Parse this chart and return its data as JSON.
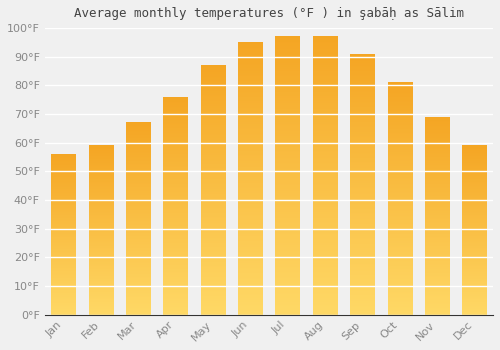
{
  "title": "Average monthly temperatures (°F ) in şabāḥ as Sālim",
  "months": [
    "Jan",
    "Feb",
    "Mar",
    "Apr",
    "May",
    "Jun",
    "Jul",
    "Aug",
    "Sep",
    "Oct",
    "Nov",
    "Dec"
  ],
  "values": [
    56,
    59,
    67,
    76,
    87,
    95,
    97,
    97,
    91,
    81,
    69,
    59
  ],
  "bar_color_top": "#F5A623",
  "bar_color_bottom": "#FFD966",
  "ylim": [
    0,
    100
  ],
  "yticks": [
    0,
    10,
    20,
    30,
    40,
    50,
    60,
    70,
    80,
    90,
    100
  ],
  "ytick_labels": [
    "0°F",
    "10°F",
    "20°F",
    "30°F",
    "40°F",
    "50°F",
    "60°F",
    "70°F",
    "80°F",
    "90°F",
    "100°F"
  ],
  "background_color": "#f0f0f0",
  "grid_color": "#ffffff",
  "title_fontsize": 9,
  "tick_fontsize": 8,
  "tick_color": "#888888",
  "bar_width": 0.65
}
